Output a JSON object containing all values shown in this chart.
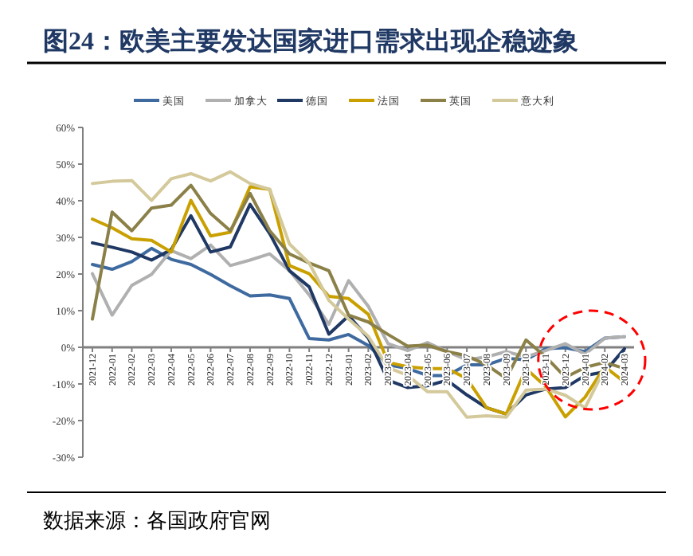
{
  "chart_data": {
    "type": "line",
    "title": "图24：欧美主要发达国家进口需求出现企稳迹象",
    "categories": [
      "2021-12",
      "2022-01",
      "2022-02",
      "2022-03",
      "2022-04",
      "2022-05",
      "2022-06",
      "2022-07",
      "2022-08",
      "2022-09",
      "2022-10",
      "2022-11",
      "2022-12",
      "2023-01",
      "2023-02",
      "2023-03",
      "2023-04",
      "2023-05",
      "2023-06",
      "2023-07",
      "2023-08",
      "2023-09",
      "2023-10",
      "2023-11",
      "2023-12",
      "2024-01",
      "2024-02",
      "2024-03"
    ],
    "series": [
      {
        "name": "美国",
        "color": "#3e6aa0",
        "values": [
          22.6,
          21.3,
          23.4,
          27,
          24,
          22.6,
          19.9,
          16.8,
          14,
          14.3,
          13.3,
          2.4,
          2,
          3.5,
          0.5,
          -4.8,
          -5.8,
          -7.7,
          -7.7,
          -4.8,
          -4.8,
          -3,
          -3.4,
          -0.4,
          -0.1,
          -1.2,
          2.5,
          2.9
        ]
      },
      {
        "name": "加拿大",
        "color": "#b0b0b0",
        "values": [
          20.1,
          8.8,
          16.9,
          19.9,
          26.4,
          24.2,
          27.9,
          22.3,
          23.8,
          25.5,
          20.9,
          14.3,
          6.3,
          18.2,
          11.2,
          1,
          -0.9,
          1.3,
          -1.2,
          -3.4,
          -2.6,
          -1.2,
          -2.6,
          -0.9,
          1,
          -1.9,
          2.5,
          2.9
        ]
      },
      {
        "name": "德国",
        "color": "#1f3864",
        "values": [
          28.5,
          27.3,
          26,
          23.8,
          26.7,
          35.9,
          26,
          27.4,
          39,
          31,
          20.9,
          16.5,
          3.6,
          8.6,
          2.5,
          -9,
          -11,
          -10.5,
          -9,
          -13,
          -16.5,
          -18.2,
          -13,
          -11.4,
          -11,
          -7.7,
          -6.7,
          -0.4
        ]
      },
      {
        "name": "法国",
        "color": "#c9a000",
        "values": [
          35,
          32.6,
          29.6,
          29.2,
          26,
          40.1,
          30.4,
          31.4,
          43.8,
          43.1,
          22.3,
          20.1,
          13.9,
          13.3,
          9,
          -4.1,
          -5.3,
          -5.8,
          -5.8,
          -8.5,
          -16.5,
          -18.2,
          -5.8,
          -10.7,
          -19,
          -13.6,
          -5.3,
          -9.5
        ]
      },
      {
        "name": "英国",
        "color": "#8b8048",
        "values": [
          7.7,
          36.9,
          31.8,
          38,
          38.8,
          44.2,
          36.5,
          31.8,
          42,
          31.8,
          25.5,
          23,
          20.9,
          8.8,
          6.9,
          3.5,
          0.3,
          0.6,
          -1.2,
          -2.3,
          -4.8,
          -8.5,
          2,
          -2.6,
          -8.2,
          -5.5,
          -4.1,
          -5.8
        ]
      },
      {
        "name": "意大利",
        "color": "#d4c99a",
        "values": [
          44.7,
          45.3,
          45.5,
          40.1,
          46,
          47.4,
          45.4,
          47.9,
          44.7,
          43.1,
          28.2,
          23,
          12.8,
          7.7,
          3,
          -5.5,
          -7.7,
          -12.1,
          -12.1,
          -19.1,
          -18.7,
          -19.1,
          -11.7,
          -11.4,
          -13.1,
          -16.5,
          -5.8,
          null
        ]
      }
    ],
    "ylim": [
      -30,
      60
    ],
    "yticks": [
      {
        "value": -30,
        "label": "-30%"
      },
      {
        "value": -20,
        "label": "-20%"
      },
      {
        "value": -10,
        "label": "-10%"
      },
      {
        "value": 0,
        "label": "0%"
      },
      {
        "value": 10,
        "label": "10%"
      },
      {
        "value": 20,
        "label": "20%"
      },
      {
        "value": 30,
        "label": "30%"
      },
      {
        "value": 40,
        "label": "40%"
      },
      {
        "value": 50,
        "label": "50%"
      },
      {
        "value": 60,
        "label": "60%"
      }
    ],
    "legend": "top",
    "annotations": [
      "数据来源：各国政府官网"
    ]
  }
}
